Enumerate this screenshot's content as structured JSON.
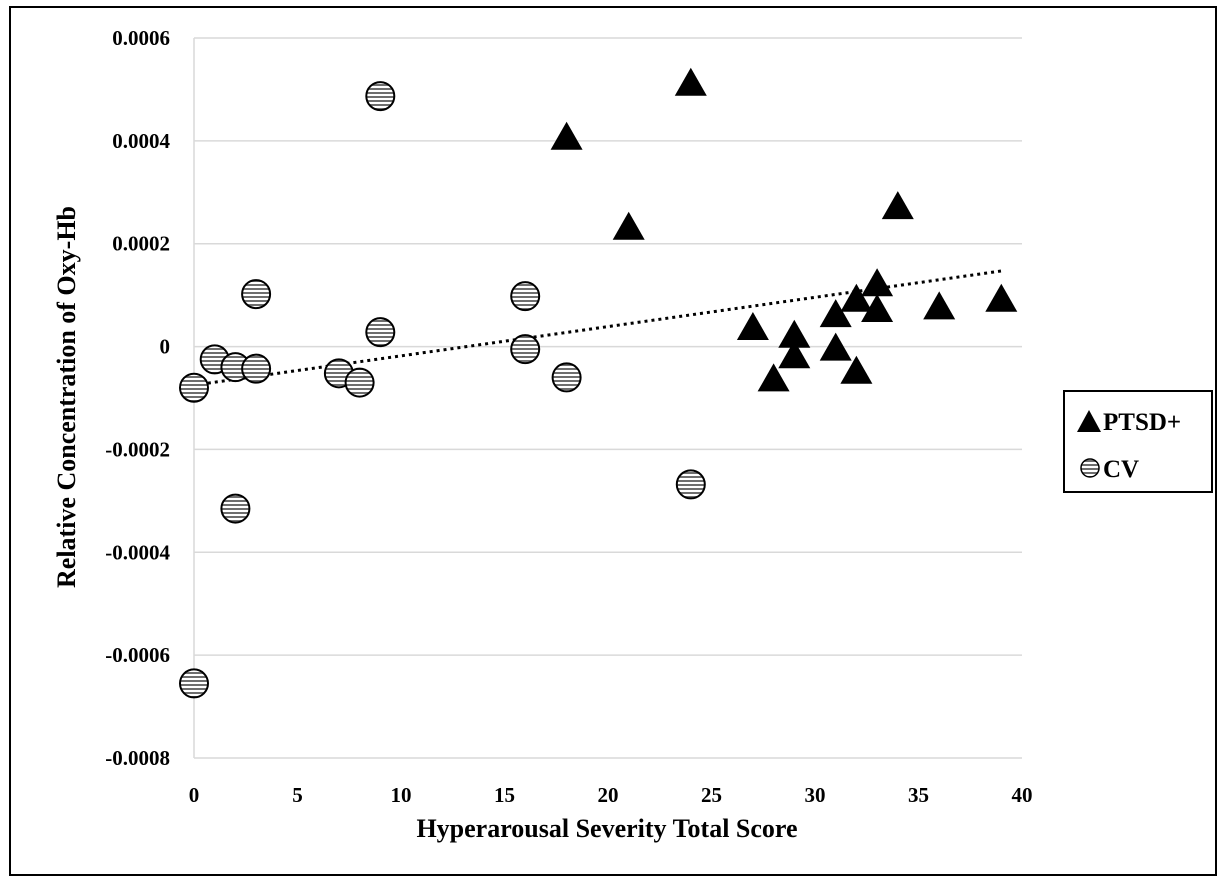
{
  "chart_data": {
    "type": "scatter",
    "title": "",
    "xlabel": "Hyperarousal Severity Total Score",
    "ylabel": "Relative Concentration  of Oxy-Hb",
    "xlim": [
      0,
      40
    ],
    "ylim": [
      -0.0008,
      0.0006
    ],
    "x_ticks": [
      0,
      5,
      10,
      15,
      20,
      25,
      30,
      35,
      40
    ],
    "y_ticks": [
      -0.0008,
      -0.0006,
      -0.0004,
      -0.0002,
      0,
      0.0002,
      0.0004,
      0.0006
    ],
    "y_tick_labels": [
      "-0.0008",
      "-0.0006",
      "-0.0004",
      "-0.0002",
      "0",
      "0.0002",
      "0.0004",
      "0.0006"
    ],
    "x_tick_labels": [
      "0",
      "5",
      "10",
      "15",
      "20",
      "25",
      "30",
      "35",
      "40"
    ],
    "grid": "horizontal",
    "legend_position": "right",
    "series": [
      {
        "name": "PTSD+",
        "marker": "triangle",
        "color": "#000000",
        "points": [
          [
            18,
            0.00041
          ],
          [
            21,
            0.000235
          ],
          [
            24,
            0.000515
          ],
          [
            27,
            4e-05
          ],
          [
            28,
            -6e-05
          ],
          [
            29,
            2.5e-05
          ],
          [
            29,
            -1.5e-05
          ],
          [
            31,
            6.5e-05
          ],
          [
            31,
            0.0
          ],
          [
            32,
            9.5e-05
          ],
          [
            32,
            -4.5e-05
          ],
          [
            33,
            0.000125
          ],
          [
            33,
            7.5e-05
          ],
          [
            34,
            0.000275
          ],
          [
            36,
            8e-05
          ],
          [
            39,
            9.5e-05
          ]
        ]
      },
      {
        "name": "CV",
        "marker": "striped-circle",
        "color": "#888888",
        "points": [
          [
            0,
            -8e-05
          ],
          [
            0,
            -0.000655
          ],
          [
            1,
            -2.5e-05
          ],
          [
            2,
            -4e-05
          ],
          [
            2,
            -0.000315
          ],
          [
            3,
            0.000102
          ],
          [
            3,
            -4.3e-05
          ],
          [
            7,
            -5.2e-05
          ],
          [
            8,
            -7e-05
          ],
          [
            9,
            0.000487
          ],
          [
            9,
            2.8e-05
          ],
          [
            16,
            9.8e-05
          ],
          [
            16,
            -5e-06
          ],
          [
            18,
            -6e-05
          ],
          [
            24,
            -0.000268
          ]
        ]
      }
    ],
    "trendline": {
      "style": "dotted",
      "x_range": [
        0,
        39
      ],
      "y_start": -7.5e-05,
      "y_end": 0.000147
    }
  }
}
